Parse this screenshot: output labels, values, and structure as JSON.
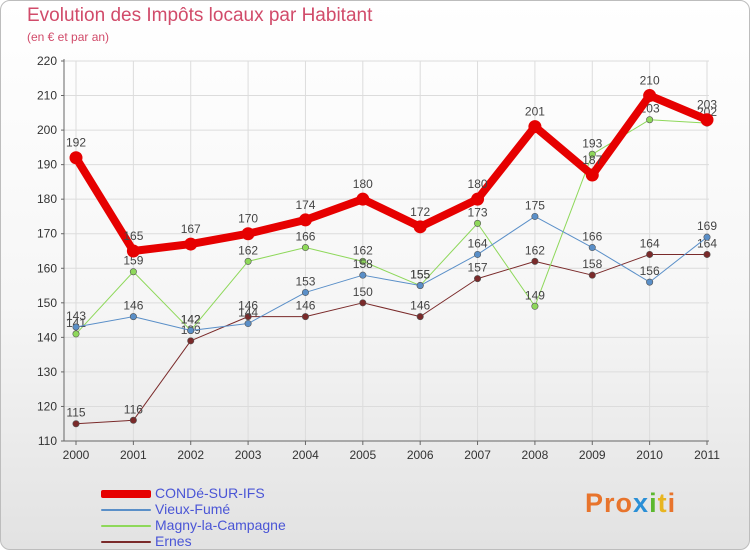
{
  "header": {
    "title": "Evolution des Impôts locaux par Habitant",
    "subtitle": "(en € et par an)"
  },
  "brand": {
    "text": "Proxiti",
    "letters": [
      "P",
      "r",
      "o",
      "x",
      "i",
      "t",
      "i"
    ],
    "colors": [
      "#e8742c",
      "#e8742c",
      "#e8742c",
      "#2a8fd6",
      "#5cb82e",
      "#e8b520",
      "#e8742c"
    ]
  },
  "chart_data": {
    "type": "line",
    "title": "Evolution des Impôts locaux par Habitant",
    "subtitle": "(en € et par an)",
    "xlabel": "",
    "ylabel": "",
    "categories": [
      "2000",
      "2001",
      "2002",
      "2003",
      "2004",
      "2005",
      "2006",
      "2007",
      "2008",
      "2009",
      "2010",
      "2011"
    ],
    "ylim": [
      110,
      220
    ],
    "yticks": [
      110,
      120,
      130,
      140,
      150,
      160,
      170,
      180,
      190,
      200,
      210,
      220
    ],
    "grid": true,
    "legend_position": "bottom-left",
    "series": [
      {
        "name": "Ernes",
        "color": "#7a2a2a",
        "width": 1,
        "values": [
          115,
          116,
          139,
          146,
          146,
          150,
          146,
          157,
          162,
          158,
          164,
          164
        ]
      },
      {
        "name": "Magny-la-Campagne",
        "color": "#8ed85a",
        "width": 1,
        "values": [
          141,
          159,
          142,
          162,
          166,
          162,
          155,
          173,
          149,
          193,
          203,
          202
        ]
      },
      {
        "name": "Vieux-Fumé",
        "color": "#5a8fc8",
        "width": 1,
        "values": [
          143,
          146,
          142,
          144,
          153,
          158,
          155,
          164,
          175,
          166,
          156,
          169
        ]
      },
      {
        "name": "CONDé-SUR-IFS",
        "color": "#e60000",
        "width": 8,
        "values": [
          192,
          165,
          167,
          170,
          174,
          180,
          172,
          180,
          201,
          187,
          210,
          203
        ]
      }
    ],
    "legend_order": [
      "CONDé-SUR-IFS",
      "Vieux-Fumé",
      "Magny-la-Campagne",
      "Ernes"
    ]
  }
}
